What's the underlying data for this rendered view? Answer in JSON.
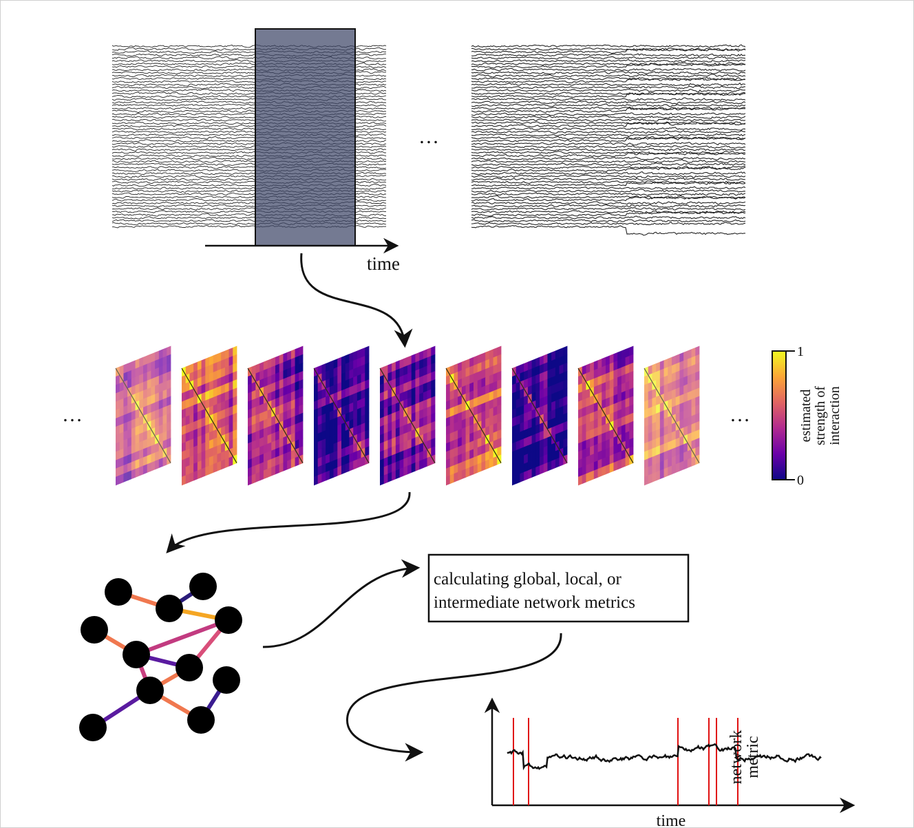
{
  "top": {
    "ellipsis": "…",
    "time_label": "time"
  },
  "matrices": {
    "ellipsis_left": "…",
    "ellipsis_right": "…"
  },
  "colorbar": {
    "max_label": "1",
    "min_label": "0",
    "label": [
      "estimated",
      "strength of",
      "interaction"
    ]
  },
  "metrics_box": {
    "lines": [
      "calculating global, local, or",
      "intermediate network metrics"
    ]
  },
  "plot": {
    "y_label": [
      "network",
      "metric"
    ],
    "x_label": "time"
  }
}
